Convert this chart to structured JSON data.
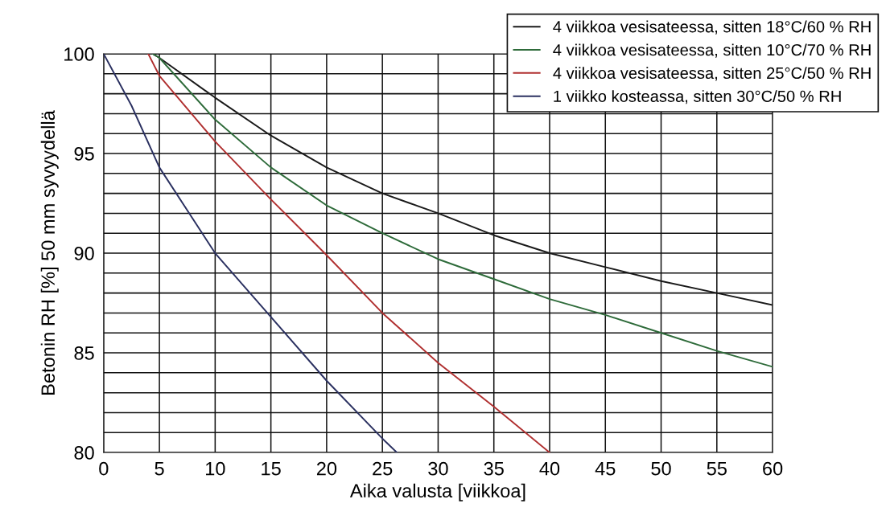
{
  "chart_data": {
    "type": "line",
    "xlabel": "Aika valusta [viikkoa]",
    "ylabel": "Betonin RH [%] 50 mm syvyydellä",
    "xlim": [
      0,
      60
    ],
    "ylim": [
      80,
      100
    ],
    "xticks": [
      0,
      5,
      10,
      15,
      20,
      25,
      30,
      35,
      40,
      45,
      50,
      55,
      60
    ],
    "yticks": [
      80,
      {
        "value": 81,
        "label": null
      },
      {
        "value": 82,
        "label": null
      },
      {
        "value": 83,
        "label": null
      },
      {
        "value": 84,
        "label": null
      },
      85,
      {
        "value": 86,
        "label": null
      },
      {
        "value": 87,
        "label": null
      },
      {
        "value": 88,
        "label": null
      },
      {
        "value": 89,
        "label": null
      },
      90,
      {
        "value": 91,
        "label": null
      },
      {
        "value": 92,
        "label": null
      },
      {
        "value": 93,
        "label": null
      },
      {
        "value": 94,
        "label": null
      },
      95,
      {
        "value": 96,
        "label": null
      },
      {
        "value": 97,
        "label": null
      },
      {
        "value": 98,
        "label": null
      },
      {
        "value": 99,
        "label": null
      },
      100
    ],
    "grid": true,
    "legend": "top right",
    "marker": "none",
    "line_style": "solid",
    "series": [
      {
        "name": "4 viikkoa vesisateessa, sitten 18°C/60 % RH",
        "color": "#1a1a1a",
        "x": [
          4.4,
          5,
          10,
          15,
          20,
          25,
          30,
          35,
          40,
          45,
          50,
          55,
          60
        ],
        "values": [
          100,
          99.8,
          97.8,
          95.9,
          94.3,
          93.0,
          92.0,
          90.9,
          90.0,
          89.3,
          88.6,
          88.0,
          87.4
        ]
      },
      {
        "name": "4 viikkoa vesisateessa, sitten 10°C/70 % RH",
        "color": "#2e6b3a",
        "x": [
          4.4,
          5,
          10,
          15,
          20,
          25,
          30,
          35,
          40,
          45,
          50,
          55,
          60
        ],
        "values": [
          100,
          99.8,
          96.7,
          94.3,
          92.4,
          91.0,
          89.7,
          88.7,
          87.7,
          86.9,
          86.0,
          85.1,
          84.3
        ]
      },
      {
        "name": "4 viikkoa vesisateessa, sitten 25°C/50 % RH",
        "color": "#b03030",
        "x": [
          4,
          5,
          10,
          15,
          20,
          25,
          30,
          35,
          40
        ],
        "values": [
          100,
          98.9,
          95.6,
          92.7,
          89.9,
          87.0,
          84.5,
          82.3,
          80
        ]
      },
      {
        "name": "1 viikko kosteassa, sitten 30°C/50 % RH",
        "color": "#2a3060",
        "x": [
          0,
          2.5,
          5,
          10,
          15,
          20,
          25,
          26.3
        ],
        "values": [
          100,
          97.4,
          94.3,
          90,
          86.8,
          83.6,
          80.7,
          80
        ]
      }
    ]
  }
}
